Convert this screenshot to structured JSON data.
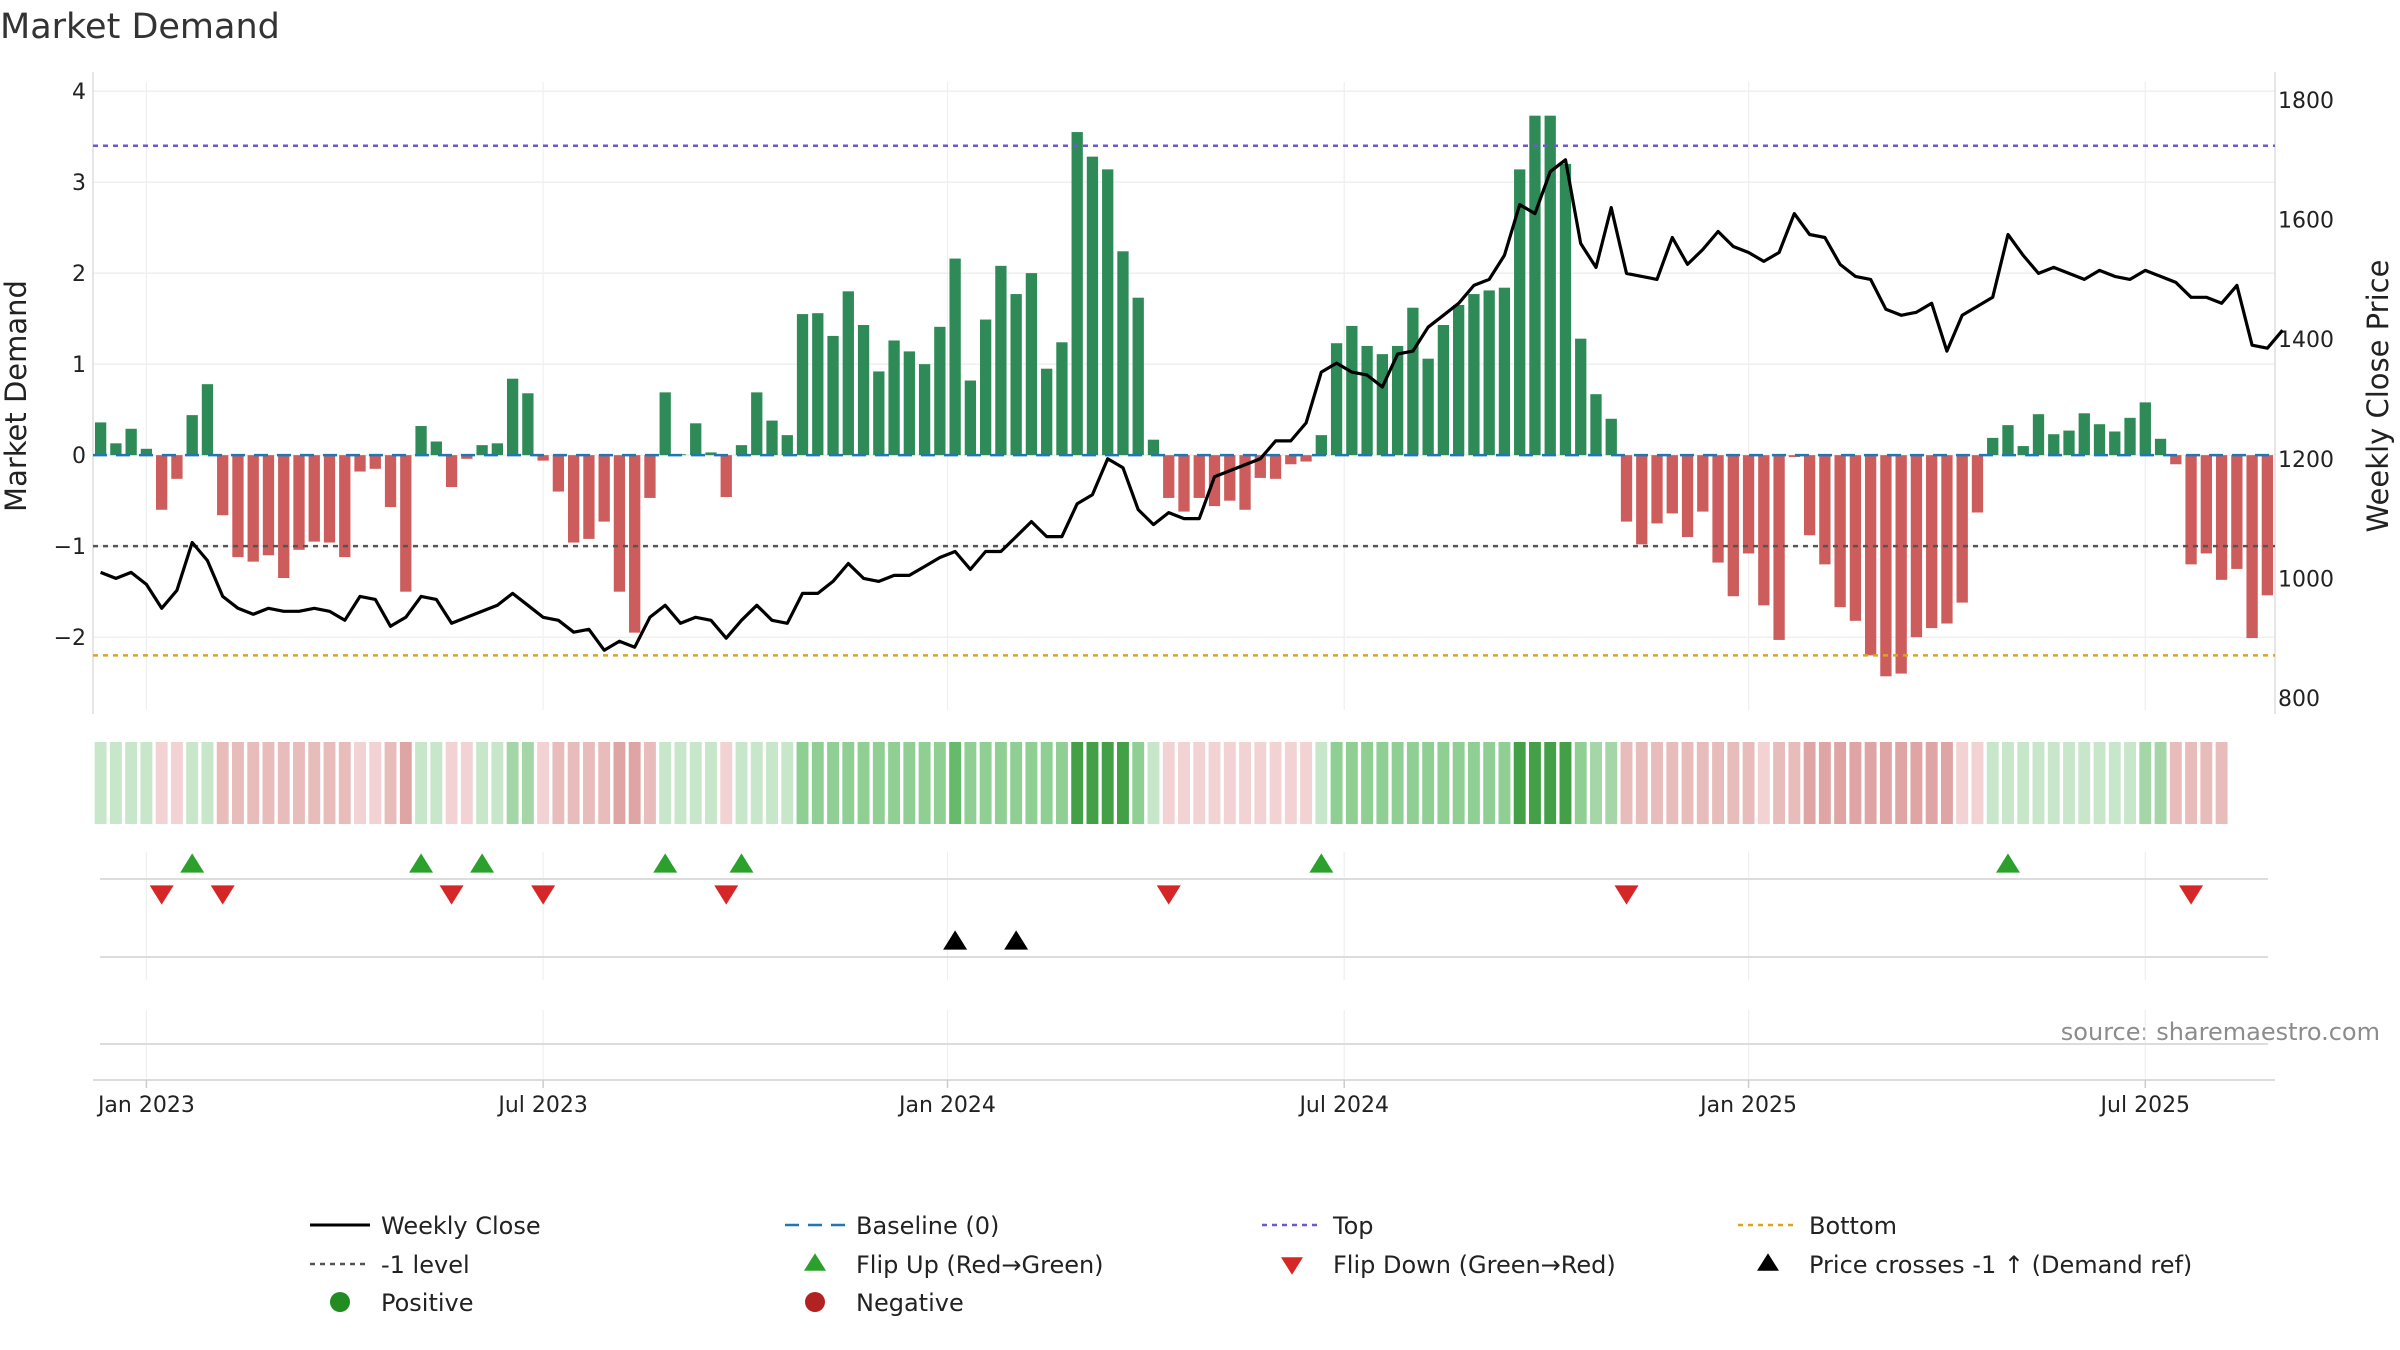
{
  "chart_data": {
    "type": "bar",
    "title": "Market Demand",
    "ylabel_left": "Market Demand",
    "ylabel_right": "Weekly Close Price",
    "ylim_left": [
      -2.8,
      4.1
    ],
    "ylim_right": [
      780,
      1830
    ],
    "yticks_left": [
      "−2",
      "−1",
      "0",
      "1",
      "2",
      "3",
      "4"
    ],
    "yticks_left_values": [
      -2,
      -1,
      0,
      1,
      2,
      3,
      4
    ],
    "yticks_right": [
      "800",
      "1000",
      "1200",
      "1400",
      "1600",
      "1800"
    ],
    "yticks_right_values": [
      800,
      1000,
      1200,
      1400,
      1600,
      1800
    ],
    "xticks": [
      "Jan 2023",
      "Jul 2023",
      "Jan 2024",
      "Jul 2024",
      "Jan 2025",
      "Jul 2025"
    ],
    "xticks_week_index": [
      3,
      29,
      55.5,
      81.5,
      108,
      134
    ],
    "reference_lines": {
      "top": 3.4,
      "bottom": -2.2,
      "minus_one": -1,
      "baseline": 0
    },
    "demand": [
      0.36,
      0.13,
      0.29,
      0.07,
      -0.6,
      -0.26,
      0.44,
      0.78,
      -0.66,
      -1.12,
      -1.17,
      -1.1,
      -1.35,
      -1.04,
      -0.95,
      -0.96,
      -1.12,
      -0.18,
      -0.15,
      -0.57,
      -1.5,
      0.32,
      0.15,
      -0.35,
      -0.04,
      0.11,
      0.13,
      0.84,
      0.68,
      -0.06,
      -0.4,
      -0.96,
      -0.92,
      -0.73,
      -1.5,
      -1.95,
      -0.47,
      0.69,
      0.01,
      0.35,
      0.03,
      -0.46,
      0.11,
      0.69,
      0.38,
      0.22,
      1.55,
      1.56,
      1.31,
      1.8,
      1.43,
      0.92,
      1.26,
      1.14,
      1.0,
      1.41,
      2.16,
      0.82,
      1.49,
      2.08,
      1.77,
      2.0,
      0.95,
      1.24,
      3.55,
      3.28,
      3.14,
      2.24,
      1.73,
      0.17,
      -0.47,
      -0.62,
      -0.47,
      -0.56,
      -0.5,
      -0.6,
      -0.25,
      -0.26,
      -0.1,
      -0.07,
      0.22,
      1.23,
      1.42,
      1.2,
      1.11,
      1.2,
      1.62,
      1.06,
      1.43,
      1.65,
      1.77,
      1.81,
      1.84,
      3.14,
      3.73,
      3.73,
      3.2,
      1.28,
      0.67,
      0.4,
      -0.73,
      -0.98,
      -0.75,
      -0.64,
      -0.9,
      -0.62,
      -1.18,
      -1.55,
      -1.08,
      -1.65,
      -2.03,
      -0.02,
      -0.88,
      -1.2,
      -1.67,
      -1.82,
      -2.2,
      -2.43,
      -2.4,
      -2.0,
      -1.9,
      -1.85,
      -1.62,
      -0.63,
      0.19,
      0.33,
      0.1,
      0.45,
      0.23,
      0.27,
      0.46,
      0.34,
      0.26,
      0.41,
      0.58,
      0.18,
      -0.1,
      -1.2,
      -1.08,
      -1.37,
      -1.25,
      -2.01,
      -1.54
    ],
    "weekly_close": [
      1010,
      1000,
      1010,
      990,
      950,
      980,
      1060,
      1030,
      970,
      950,
      940,
      950,
      945,
      945,
      950,
      945,
      930,
      970,
      965,
      920,
      935,
      970,
      965,
      925,
      935,
      945,
      955,
      975,
      955,
      935,
      930,
      910,
      915,
      880,
      895,
      885,
      935,
      955,
      925,
      935,
      930,
      900,
      930,
      955,
      930,
      925,
      975,
      975,
      995,
      1025,
      1000,
      995,
      1005,
      1005,
      1020,
      1035,
      1045,
      1015,
      1045,
      1045,
      1070,
      1095,
      1070,
      1070,
      1125,
      1140,
      1200,
      1185,
      1115,
      1090,
      1110,
      1100,
      1100,
      1170,
      1180,
      1190,
      1200,
      1230,
      1230,
      1260,
      1345,
      1360,
      1345,
      1340,
      1320,
      1375,
      1380,
      1420,
      1440,
      1460,
      1490,
      1500,
      1540,
      1625,
      1610,
      1680,
      1700,
      1560,
      1520,
      1620,
      1510,
      1505,
      1500,
      1570,
      1525,
      1550,
      1580,
      1555,
      1545,
      1530,
      1545,
      1610,
      1575,
      1570,
      1525,
      1505,
      1500,
      1450,
      1440,
      1445,
      1460,
      1380,
      1440,
      1455,
      1470,
      1575,
      1540,
      1510,
      1520,
      1510,
      1500,
      1515,
      1505,
      1500,
      1515,
      1505,
      1495,
      1470,
      1470,
      1460,
      1490,
      1390,
      1385,
      1415
    ],
    "heat_strength": [
      1,
      1,
      1,
      1,
      1,
      1,
      1,
      1,
      2,
      2,
      2,
      2,
      2,
      2,
      2,
      2,
      2,
      1,
      1,
      2,
      3,
      1,
      1,
      1,
      1,
      1,
      1,
      2,
      2,
      1,
      2,
      2,
      2,
      2,
      3,
      3,
      2,
      1,
      1,
      1,
      1,
      1,
      1,
      1,
      1,
      1,
      3,
      3,
      3,
      3,
      3,
      3,
      3,
      3,
      3,
      3,
      4,
      3,
      3,
      3,
      3,
      3,
      3,
      3,
      5,
      5,
      5,
      5,
      3,
      1,
      1,
      1,
      1,
      1,
      1,
      1,
      1,
      1,
      1,
      1,
      1,
      3,
      3,
      3,
      3,
      3,
      3,
      3,
      3,
      3,
      3,
      3,
      3,
      5,
      5,
      5,
      5,
      3,
      2,
      2,
      2,
      2,
      2,
      2,
      2,
      2,
      2,
      2,
      2,
      1,
      2,
      2,
      3,
      3,
      3,
      3,
      3,
      3,
      3,
      3,
      3,
      3,
      1,
      1,
      1,
      1,
      1,
      1,
      1,
      1,
      1,
      1,
      1,
      1,
      2,
      2,
      2,
      2,
      2,
      2
    ],
    "flip_up_weeks": [
      6,
      21,
      25,
      37,
      42,
      80,
      125
    ],
    "flip_down_weeks": [
      4,
      8,
      23,
      29,
      41,
      70,
      100,
      137
    ],
    "price_cross_weeks": [
      56,
      60
    ],
    "colors": {
      "positive_bar": "#2e8b57",
      "negative_bar": "#cd5c5c",
      "weekly_close": "#000000",
      "baseline": "#1f77b4",
      "top": "#6a5acd",
      "bottom": "#daa520",
      "minus_one": "#555555",
      "flip_up": "#2ca02c",
      "flip_down": "#d62728",
      "price_cross": "#000000",
      "positive_dot": "#228b22",
      "negative_dot": "#b22222",
      "heat_green": [
        "#c8e6c9",
        "#a5d6a7",
        "#8fcf94",
        "#66bb6a",
        "#43a047"
      ],
      "heat_red": [
        "#f2d2d2",
        "#e9bcbc",
        "#dfa5a5",
        "#d48e8e",
        "#c97878"
      ]
    },
    "legend": [
      {
        "label": "Weekly Close",
        "kind": "line"
      },
      {
        "label": "Baseline (0)",
        "kind": "dash"
      },
      {
        "label": "Top",
        "kind": "dot_purple"
      },
      {
        "label": "Bottom",
        "kind": "dot_gold"
      },
      {
        "label": "-1 level",
        "kind": "dot_gray"
      },
      {
        "label": "Flip Up (Red→Green)",
        "kind": "tri_up_green"
      },
      {
        "label": "Flip Down (Green→Red)",
        "kind": "tri_down_red"
      },
      {
        "label": "Price crosses -1 ↑ (Demand ref)",
        "kind": "tri_up_black"
      },
      {
        "label": "Positive",
        "kind": "circle_green"
      },
      {
        "label": "Negative",
        "kind": "circle_red"
      }
    ],
    "source": "source: sharemaestro.com"
  }
}
